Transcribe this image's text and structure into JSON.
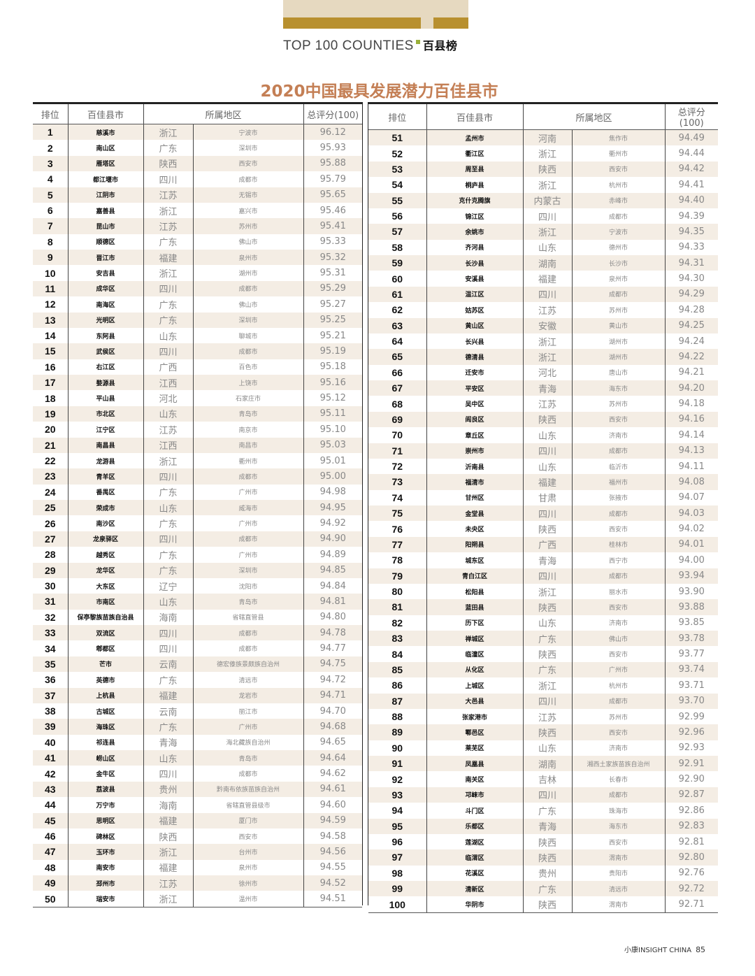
{
  "header": {
    "brand_en": "TOP 100 COUNTIES",
    "brand_cn": "百县榜",
    "accent": "#b8902f"
  },
  "title": "2020中国最具发展潜力百佳县市",
  "columns": {
    "rank": "排位",
    "name": "百佳县市",
    "region": "所属地区",
    "score": "总评分(100)"
  },
  "left_rows": [
    [
      "1",
      "慈溪市",
      "浙江",
      "宁波市",
      "96.12"
    ],
    [
      "2",
      "南山区",
      "广东",
      "深圳市",
      "95.93"
    ],
    [
      "3",
      "雁塔区",
      "陕西",
      "西安市",
      "95.88"
    ],
    [
      "4",
      "都江堰市",
      "四川",
      "成都市",
      "95.79"
    ],
    [
      "5",
      "江阴市",
      "江苏",
      "无锡市",
      "95.65"
    ],
    [
      "6",
      "嘉善县",
      "浙江",
      "嘉兴市",
      "95.46"
    ],
    [
      "7",
      "昆山市",
      "江苏",
      "苏州市",
      "95.41"
    ],
    [
      "8",
      "顺德区",
      "广东",
      "佛山市",
      "95.33"
    ],
    [
      "9",
      "晋江市",
      "福建",
      "泉州市",
      "95.32"
    ],
    [
      "10",
      "安吉县",
      "浙江",
      "湖州市",
      "95.31"
    ],
    [
      "11",
      "成华区",
      "四川",
      "成都市",
      "95.29"
    ],
    [
      "12",
      "南海区",
      "广东",
      "佛山市",
      "95.27"
    ],
    [
      "13",
      "光明区",
      "广东",
      "深圳市",
      "95.25"
    ],
    [
      "14",
      "东阿县",
      "山东",
      "聊城市",
      "95.21"
    ],
    [
      "15",
      "武侯区",
      "四川",
      "成都市",
      "95.19"
    ],
    [
      "16",
      "右江区",
      "广西",
      "百色市",
      "95.18"
    ],
    [
      "17",
      "婺源县",
      "江西",
      "上饶市",
      "95.16"
    ],
    [
      "18",
      "平山县",
      "河北",
      "石家庄市",
      "95.12"
    ],
    [
      "19",
      "市北区",
      "山东",
      "青岛市",
      "95.11"
    ],
    [
      "20",
      "江宁区",
      "江苏",
      "南京市",
      "95.10"
    ],
    [
      "21",
      "南昌县",
      "江西",
      "南昌市",
      "95.03"
    ],
    [
      "22",
      "龙游县",
      "浙江",
      "衢州市",
      "95.01"
    ],
    [
      "23",
      "青羊区",
      "四川",
      "成都市",
      "95.00"
    ],
    [
      "24",
      "番禺区",
      "广东",
      "广州市",
      "94.98"
    ],
    [
      "25",
      "荣成市",
      "山东",
      "威海市",
      "94.95"
    ],
    [
      "26",
      "南沙区",
      "广东",
      "广州市",
      "94.92"
    ],
    [
      "27",
      "龙泉驿区",
      "四川",
      "成都市",
      "94.90"
    ],
    [
      "28",
      "越秀区",
      "广东",
      "广州市",
      "94.89"
    ],
    [
      "29",
      "龙华区",
      "广东",
      "深圳市",
      "94.85"
    ],
    [
      "30",
      "大东区",
      "辽宁",
      "沈阳市",
      "94.84"
    ],
    [
      "31",
      "市南区",
      "山东",
      "青岛市",
      "94.81"
    ],
    [
      "32",
      "保亭黎族苗族自治县",
      "海南",
      "省辖直管县",
      "94.80"
    ],
    [
      "33",
      "双流区",
      "四川",
      "成都市",
      "94.78"
    ],
    [
      "34",
      "郫都区",
      "四川",
      "成都市",
      "94.77"
    ],
    [
      "35",
      "芒市",
      "云南",
      "德宏傣族景颇族自治州",
      "94.75"
    ],
    [
      "36",
      "英德市",
      "广东",
      "清远市",
      "94.72"
    ],
    [
      "37",
      "上杭县",
      "福建",
      "龙岩市",
      "94.71"
    ],
    [
      "38",
      "古城区",
      "云南",
      "丽江市",
      "94.70"
    ],
    [
      "39",
      "海珠区",
      "广东",
      "广州市",
      "94.68"
    ],
    [
      "40",
      "祁连县",
      "青海",
      "海北藏族自治州",
      "94.65"
    ],
    [
      "41",
      "崂山区",
      "山东",
      "青岛市",
      "94.64"
    ],
    [
      "42",
      "金牛区",
      "四川",
      "成都市",
      "94.62"
    ],
    [
      "43",
      "荔波县",
      "贵州",
      "黔南布依族苗族自治州",
      "94.61"
    ],
    [
      "44",
      "万宁市",
      "海南",
      "省辖直管县级市",
      "94.60"
    ],
    [
      "45",
      "思明区",
      "福建",
      "厦门市",
      "94.59"
    ],
    [
      "46",
      "碑林区",
      "陕西",
      "西安市",
      "94.58"
    ],
    [
      "47",
      "玉环市",
      "浙江",
      "台州市",
      "94.56"
    ],
    [
      "48",
      "南安市",
      "福建",
      "泉州市",
      "94.55"
    ],
    [
      "49",
      "邳州市",
      "江苏",
      "徐州市",
      "94.52"
    ],
    [
      "50",
      "瑞安市",
      "浙江",
      "温州市",
      "94.51"
    ]
  ],
  "right_rows": [
    [
      "51",
      "孟州市",
      "河南",
      "焦作市",
      "94.49"
    ],
    [
      "52",
      "衢江区",
      "浙江",
      "衢州市",
      "94.44"
    ],
    [
      "53",
      "周至县",
      "陕西",
      "西安市",
      "94.42"
    ],
    [
      "54",
      "桐庐县",
      "浙江",
      "杭州市",
      "94.41"
    ],
    [
      "55",
      "克什克腾旗",
      "内蒙古",
      "赤峰市",
      "94.40"
    ],
    [
      "56",
      "锦江区",
      "四川",
      "成都市",
      "94.39"
    ],
    [
      "57",
      "余姚市",
      "浙江",
      "宁波市",
      "94.35"
    ],
    [
      "58",
      "齐河县",
      "山东",
      "德州市",
      "94.33"
    ],
    [
      "59",
      "长沙县",
      "湖南",
      "长沙市",
      "94.31"
    ],
    [
      "60",
      "安溪县",
      "福建",
      "泉州市",
      "94.30"
    ],
    [
      "61",
      "温江区",
      "四川",
      "成都市",
      "94.29"
    ],
    [
      "62",
      "姑苏区",
      "江苏",
      "苏州市",
      "94.28"
    ],
    [
      "63",
      "黄山区",
      "安徽",
      "黄山市",
      "94.25"
    ],
    [
      "64",
      "长兴县",
      "浙江",
      "湖州市",
      "94.24"
    ],
    [
      "65",
      "德清县",
      "浙江",
      "湖州市",
      "94.22"
    ],
    [
      "66",
      "迁安市",
      "河北",
      "唐山市",
      "94.21"
    ],
    [
      "67",
      "平安区",
      "青海",
      "海东市",
      "94.20"
    ],
    [
      "68",
      "吴中区",
      "江苏",
      "苏州市",
      "94.18"
    ],
    [
      "69",
      "阎良区",
      "陕西",
      "西安市",
      "94.16"
    ],
    [
      "70",
      "章丘区",
      "山东",
      "济南市",
      "94.14"
    ],
    [
      "71",
      "崇州市",
      "四川",
      "成都市",
      "94.13"
    ],
    [
      "72",
      "沂南县",
      "山东",
      "临沂市",
      "94.11"
    ],
    [
      "73",
      "福清市",
      "福建",
      "福州市",
      "94.08"
    ],
    [
      "74",
      "甘州区",
      "甘肃",
      "张掖市",
      "94.07"
    ],
    [
      "75",
      "金堂县",
      "四川",
      "成都市",
      "94.03"
    ],
    [
      "76",
      "未央区",
      "陕西",
      "西安市",
      "94.02"
    ],
    [
      "77",
      "阳朔县",
      "广西",
      "桂林市",
      "94.01"
    ],
    [
      "78",
      "城东区",
      "青海",
      "西宁市",
      "94.00"
    ],
    [
      "79",
      "青白江区",
      "四川",
      "成都市",
      "93.94"
    ],
    [
      "80",
      "松阳县",
      "浙江",
      "丽水市",
      "93.90"
    ],
    [
      "81",
      "蓝田县",
      "陕西",
      "西安市",
      "93.88"
    ],
    [
      "82",
      "历下区",
      "山东",
      "济南市",
      "93.85"
    ],
    [
      "83",
      "禅城区",
      "广东",
      "佛山市",
      "93.78"
    ],
    [
      "84",
      "临潼区",
      "陕西",
      "西安市",
      "93.77"
    ],
    [
      "85",
      "从化区",
      "广东",
      "广州市",
      "93.74"
    ],
    [
      "86",
      "上城区",
      "浙江",
      "杭州市",
      "93.71"
    ],
    [
      "87",
      "大邑县",
      "四川",
      "成都市",
      "93.70"
    ],
    [
      "88",
      "张家港市",
      "江苏",
      "苏州市",
      "92.99"
    ],
    [
      "89",
      "鄠邑区",
      "陕西",
      "西安市",
      "92.96"
    ],
    [
      "90",
      "莱芜区",
      "山东",
      "济南市",
      "92.93"
    ],
    [
      "91",
      "凤凰县",
      "湖南",
      "湘西土家族苗族自治州",
      "92.91"
    ],
    [
      "92",
      "南关区",
      "吉林",
      "长春市",
      "92.90"
    ],
    [
      "93",
      "邛崃市",
      "四川",
      "成都市",
      "92.87"
    ],
    [
      "94",
      "斗门区",
      "广东",
      "珠海市",
      "92.86"
    ],
    [
      "95",
      "乐都区",
      "青海",
      "海东市",
      "92.83"
    ],
    [
      "96",
      "莲湖区",
      "陕西",
      "西安市",
      "92.81"
    ],
    [
      "97",
      "临渭区",
      "陕西",
      "渭南市",
      "92.80"
    ],
    [
      "98",
      "花溪区",
      "贵州",
      "贵阳市",
      "92.76"
    ],
    [
      "99",
      "清新区",
      "广东",
      "清远市",
      "92.72"
    ],
    [
      "100",
      "华阴市",
      "陕西",
      "渭南市",
      "92.71"
    ]
  ],
  "footer": {
    "magazine": "小康INSIGHT CHINA",
    "page": "85"
  }
}
